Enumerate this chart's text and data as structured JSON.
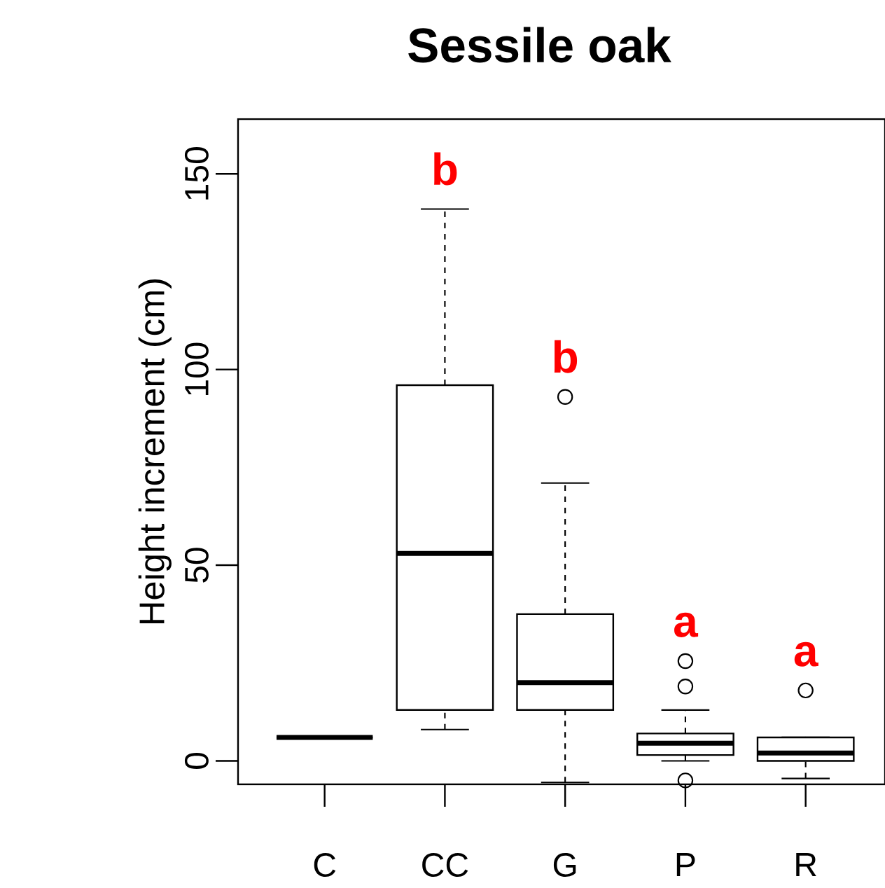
{
  "chart_data": {
    "type": "box",
    "title": "Sessile oak",
    "ylabel": "Height increment (cm)",
    "categories": [
      "C",
      "CC",
      "G",
      "P",
      "R"
    ],
    "ylim": [
      -6,
      164
    ],
    "yticks": [
      0,
      50,
      100,
      150
    ],
    "boxes": [
      {
        "low": 6,
        "q1": 6,
        "median": 6,
        "q3": 6,
        "high": 6
      },
      {
        "low": 8,
        "q1": 13,
        "median": 53,
        "q3": 96,
        "high": 141
      },
      {
        "low": -5.5,
        "q1": 13,
        "median": 20,
        "q3": 37.5,
        "high": 71,
        "outliers": [
          93
        ]
      },
      {
        "low": 0,
        "q1": 1.5,
        "median": 4.5,
        "q3": 7,
        "high": 13,
        "outliers": [
          25.5,
          19,
          -5
        ]
      },
      {
        "low": -4.5,
        "q1": 0,
        "median": 2,
        "q3": 6,
        "high": 6,
        "outliers": [
          18
        ]
      }
    ],
    "annotations": [
      "b",
      "b",
      "a",
      "a"
    ]
  }
}
